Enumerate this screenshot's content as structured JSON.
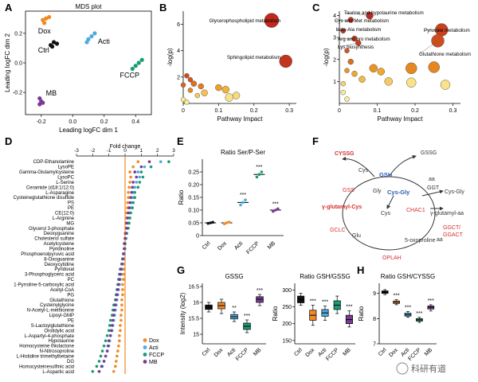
{
  "panel_letters": {
    "A": "A",
    "B": "B",
    "C": "C",
    "D": "D",
    "E": "E",
    "F": "F",
    "G": "G",
    "H": "H"
  },
  "colors": {
    "Ctrl": "#111111",
    "Dox": "#f08a24",
    "Acti": "#4faadc",
    "FCCP": "#1b9a77",
    "MB": "#7b3a96",
    "bubble_hot": "#c0281c",
    "bubble_mid": "#f0a020",
    "bubble_cold": "#fbf3a2",
    "sig": "#d32f2f",
    "gsh": "#2a5db0"
  },
  "chart_data": [
    {
      "id": "A",
      "type": "scatter",
      "title": "MDS plot",
      "xlabel": "Leading logFC dim 1",
      "ylabel": "Leading logFC dim 2",
      "xlim": [
        -0.3,
        0.5
      ],
      "ylim": [
        -0.35,
        0.35
      ],
      "xticks": [
        "-0.2",
        "0.0",
        "0.2",
        "0.4"
      ],
      "yticks": [
        "-0.2",
        "0.0",
        "0.2"
      ],
      "series": [
        {
          "name": "Dox",
          "points": [
            [
              -0.19,
              0.29
            ],
            [
              -0.17,
              0.3
            ],
            [
              -0.15,
              0.31
            ],
            [
              -0.18,
              0.27
            ]
          ]
        },
        {
          "name": "Ctrl",
          "points": [
            [
              -0.14,
              0.12
            ],
            [
              -0.12,
              0.14
            ],
            [
              -0.1,
              0.13
            ],
            [
              -0.13,
              0.11
            ]
          ]
        },
        {
          "name": "Acti",
          "points": [
            [
              0.1,
              0.16
            ],
            [
              0.12,
              0.18
            ],
            [
              0.14,
              0.2
            ],
            [
              0.09,
              0.14
            ]
          ]
        },
        {
          "name": "FCCP",
          "points": [
            [
              0.38,
              -0.04
            ],
            [
              0.4,
              -0.02
            ],
            [
              0.42,
              0.0
            ],
            [
              0.44,
              0.02
            ]
          ]
        },
        {
          "name": "MB",
          "points": [
            [
              -0.21,
              -0.24
            ],
            [
              -0.2,
              -0.26
            ],
            [
              -0.19,
              -0.27
            ],
            [
              -0.21,
              -0.28
            ]
          ]
        }
      ]
    },
    {
      "id": "B",
      "type": "scatter",
      "xlabel": "Pathway Impact",
      "ylabel": "-log(p)",
      "xlim": [
        0,
        0.32
      ],
      "ylim": [
        0,
        7
      ],
      "xticks": [
        "0",
        "0.1",
        "0.2",
        "0.3"
      ],
      "yticks": [
        "2",
        "4",
        "6"
      ],
      "points": [
        {
          "x": 0.25,
          "y": 6.3,
          "size": 9,
          "heat": 1.0,
          "label": "Glycerophospholipid metabolism"
        },
        {
          "x": 0.29,
          "y": 3.2,
          "size": 8,
          "heat": 0.95,
          "label": "Sphingolipid metabolism"
        },
        {
          "x": 0.01,
          "y": 2.1,
          "size": 3,
          "heat": 0.85,
          "label": ""
        },
        {
          "x": 0.02,
          "y": 1.8,
          "size": 3,
          "heat": 0.8,
          "label": ""
        },
        {
          "x": 0.03,
          "y": 1.5,
          "size": 3.5,
          "heat": 0.7,
          "label": ""
        },
        {
          "x": 0.0,
          "y": 1.4,
          "size": 3,
          "heat": 0.75,
          "label": ""
        },
        {
          "x": 0.05,
          "y": 1.3,
          "size": 3.5,
          "heat": 0.65,
          "label": ""
        },
        {
          "x": 0.1,
          "y": 1.2,
          "size": 4,
          "heat": 0.5,
          "label": ""
        },
        {
          "x": 0.12,
          "y": 1.05,
          "size": 4.5,
          "heat": 0.4,
          "label": ""
        },
        {
          "x": 0.02,
          "y": 1.0,
          "size": 3,
          "heat": 0.6,
          "label": ""
        },
        {
          "x": 0.06,
          "y": 0.8,
          "size": 4,
          "heat": 0.3,
          "label": ""
        },
        {
          "x": 0.04,
          "y": 0.6,
          "size": 3,
          "heat": 0.25,
          "label": ""
        },
        {
          "x": 0.15,
          "y": 0.6,
          "size": 4.5,
          "heat": 0.15,
          "label": ""
        },
        {
          "x": 0.13,
          "y": 0.45,
          "size": 5,
          "heat": 0.1,
          "label": ""
        },
        {
          "x": 0.0,
          "y": 0.3,
          "size": 3,
          "heat": 0.05,
          "label": ""
        },
        {
          "x": 0.01,
          "y": 0.1,
          "size": 3,
          "heat": 0.05,
          "label": ""
        }
      ]
    },
    {
      "id": "C",
      "type": "scatter",
      "xlabel": "Pathway Impact",
      "ylabel": "-log(p)",
      "xlim": [
        0,
        0.32
      ],
      "ylim": [
        0,
        4.2
      ],
      "xticks": [
        "0",
        "0.1",
        "0.2",
        "0.3"
      ],
      "yticks": [
        "1",
        "2",
        "3",
        "4"
      ],
      "points": [
        {
          "x": 0.08,
          "y": 4.0,
          "size": 4.5,
          "heat": 1.0,
          "label": "Taurine and hypotaurine metabolism"
        },
        {
          "x": 0.03,
          "y": 3.8,
          "size": 3.5,
          "heat": 0.95,
          "label": "Cys and Met metabolism"
        },
        {
          "x": 0.01,
          "y": 3.3,
          "size": 3,
          "heat": 0.95,
          "label": "beta-Ala metabolism"
        },
        {
          "x": 0.27,
          "y": 3.35,
          "size": 8,
          "heat": 0.9,
          "label": "Pyruvate metabolism"
        },
        {
          "x": 0.04,
          "y": 2.95,
          "size": 3.5,
          "heat": 0.9,
          "label": "Arg and pro metabolism"
        },
        {
          "x": 0.05,
          "y": 2.75,
          "size": 3.5,
          "heat": 0.9,
          "label": "Lys biosynthesis"
        },
        {
          "x": 0.26,
          "y": 2.85,
          "size": 8,
          "heat": 0.85,
          "label": "Glutathione metabolism"
        },
        {
          "x": 0.02,
          "y": 2.4,
          "size": 3,
          "heat": 0.8,
          "label": ""
        },
        {
          "x": 0.03,
          "y": 1.9,
          "size": 3.5,
          "heat": 0.7,
          "label": ""
        },
        {
          "x": 0.09,
          "y": 1.6,
          "size": 5,
          "heat": 0.55,
          "label": ""
        },
        {
          "x": 0.02,
          "y": 1.5,
          "size": 3,
          "heat": 0.55,
          "label": ""
        },
        {
          "x": 0.04,
          "y": 1.35,
          "size": 3.5,
          "heat": 0.45,
          "label": ""
        },
        {
          "x": 0.11,
          "y": 1.45,
          "size": 4.5,
          "heat": 0.45,
          "label": ""
        },
        {
          "x": 0.06,
          "y": 1.1,
          "size": 4,
          "heat": 0.35,
          "label": ""
        },
        {
          "x": 0.13,
          "y": 1.0,
          "size": 5,
          "heat": 0.25,
          "label": ""
        },
        {
          "x": 0.19,
          "y": 1.6,
          "size": 7,
          "heat": 0.6,
          "label": ""
        },
        {
          "x": 0.25,
          "y": 1.65,
          "size": 7,
          "heat": 0.6,
          "label": ""
        },
        {
          "x": 0.19,
          "y": 0.95,
          "size": 6,
          "heat": 0.1,
          "label": ""
        },
        {
          "x": 0.28,
          "y": 0.85,
          "size": 6,
          "heat": 0.1,
          "label": ""
        },
        {
          "x": 0.01,
          "y": 0.9,
          "size": 3,
          "heat": 0.2,
          "label": ""
        },
        {
          "x": 0.01,
          "y": 0.5,
          "size": 3,
          "heat": 0.05,
          "label": ""
        },
        {
          "x": 0.02,
          "y": 0.2,
          "size": 3,
          "heat": 0.05,
          "label": ""
        }
      ]
    },
    {
      "id": "D",
      "type": "scatter",
      "title": "Fold change",
      "xlim": [
        -3,
        3
      ],
      "xticks": [
        "-3",
        "-2",
        "-1",
        "0",
        "1",
        "2",
        "3"
      ],
      "groups": [
        "Dox",
        "Acti",
        "FCCP",
        "MB"
      ],
      "categories": [
        "CDP-Ethanolamine",
        "LysoPE",
        "Gamma-Glutamylcysteine",
        "LysoPC",
        "L-Serine",
        "Ceramide (d18:1/12:0)",
        "L-Asparagine",
        "Cysteineglutathione disulfide",
        "PS",
        "PE",
        "CE(12:0)",
        "L-Arginine",
        "MG",
        "Glycerol 3-phosphate",
        "Deoxyguanine",
        "Cholesterol sulfate",
        "Acetylcysteine",
        "Pyridinoline",
        "Phosphoenolpyruvic acid",
        "8-Oxoguanine",
        "Deoxycytidine",
        "Pyridoxal",
        "3-Phosphoglyceric acid",
        "PC",
        "1-Pyrroline-5-carboxylic acid",
        "Acetyl-CoA",
        "PG",
        "Glutathione",
        "Cysteinylglycine",
        "N-Acetyl-L-methionine",
        "Lipoyl-GMP",
        "PE",
        "S-Lactoylglutathione",
        "Orotidylic acid",
        "L-Aspartyl-4-phosphate",
        "Hypotaurine",
        "Homocysteine thiolactone",
        "N-Nitrosoproline",
        "L-Histidine trimethylbetaine",
        "DG",
        "Homocysteinesulfinic acid",
        "L-Aspartic acid"
      ],
      "values": {
        "Dox": [
          0.8,
          0.5,
          0.3,
          0.35,
          0.3,
          0.25,
          0.2,
          0.2,
          0.15,
          0.15,
          0.1,
          0.1,
          0.05,
          0.05,
          0.0,
          0.0,
          0.0,
          -0.05,
          -0.05,
          -0.05,
          -0.1,
          -0.1,
          -0.1,
          -0.1,
          -0.15,
          -0.15,
          -0.15,
          -0.2,
          -0.2,
          -0.2,
          -0.25,
          -0.25,
          -0.3,
          -0.3,
          -0.35,
          -0.35,
          -0.4,
          -0.45,
          -0.5,
          -0.55,
          -0.6,
          -0.7
        ],
        "Acti": [
          2.2,
          1.2,
          0.8,
          0.9,
          0.7,
          0.6,
          0.5,
          0.5,
          0.4,
          0.35,
          0.3,
          0.25,
          0.2,
          0.15,
          0.1,
          0.05,
          0.0,
          0.0,
          -0.05,
          -0.1,
          -0.15,
          -0.2,
          -0.25,
          -0.3,
          -0.35,
          -0.4,
          -0.45,
          -0.5,
          -0.55,
          -0.6,
          -0.65,
          -0.7,
          -0.75,
          -0.8,
          -0.9,
          -0.95,
          -1.0,
          -1.1,
          -1.2,
          -1.3,
          -1.4,
          -1.6
        ],
        "FCCP": [
          2.7,
          1.6,
          1.0,
          1.1,
          0.9,
          0.8,
          0.6,
          0.6,
          0.5,
          0.45,
          0.35,
          0.3,
          0.25,
          0.2,
          0.1,
          0.05,
          0.0,
          -0.05,
          -0.1,
          -0.15,
          -0.2,
          -0.3,
          -0.35,
          -0.4,
          -0.45,
          -0.5,
          -0.55,
          -0.6,
          -0.7,
          -0.75,
          -0.8,
          -0.9,
          -0.95,
          -1.0,
          -1.1,
          -1.2,
          -1.3,
          -1.4,
          -1.5,
          -1.6,
          -1.75,
          -2.0
        ],
        "MB": [
          1.5,
          1.0,
          0.6,
          0.7,
          0.5,
          0.45,
          0.4,
          0.35,
          0.3,
          0.25,
          0.2,
          0.15,
          0.1,
          0.1,
          0.05,
          0.0,
          -0.05,
          -0.05,
          -0.1,
          -0.15,
          -0.2,
          -0.25,
          -0.3,
          -0.35,
          -0.4,
          -0.45,
          -0.5,
          -0.55,
          -0.6,
          -0.65,
          -0.7,
          -0.75,
          -0.8,
          -0.85,
          -0.9,
          -1.0,
          -1.05,
          -1.1,
          -1.2,
          -1.3,
          -1.45,
          -1.6
        ]
      },
      "legend": [
        "Dox",
        "Acti",
        "FCCP",
        "MB"
      ]
    },
    {
      "id": "E",
      "type": "scatter",
      "title": "Ratio Ser/P-Ser",
      "ylabel": "Ratio",
      "ylim": [
        0,
        0.3
      ],
      "yticks": [
        "0",
        "0.05",
        "0.10",
        "0.15",
        "0.20",
        "0.25"
      ],
      "categories": [
        "Ctrl",
        "Dox",
        "Acti",
        "FCCP",
        "MB"
      ],
      "means": [
        0.05,
        0.05,
        0.13,
        0.24,
        0.1
      ],
      "points": [
        [
          0.048,
          0.05,
          0.052
        ],
        [
          0.046,
          0.05,
          0.053
        ],
        [
          0.12,
          0.13,
          0.14
        ],
        [
          0.23,
          0.24,
          0.25
        ],
        [
          0.095,
          0.1,
          0.105
        ]
      ],
      "significance": [
        "",
        "",
        "***",
        "***",
        "***"
      ]
    },
    {
      "id": "G1",
      "type": "box",
      "title": "GSSG",
      "ylabel": "Intensity (log2)",
      "ylim": [
        14.7,
        16.6
      ],
      "yticks": [
        "15",
        "15.5",
        "16",
        "16.5"
      ],
      "categories": [
        "Ctrl",
        "Dox",
        "Acti",
        "FCCP",
        "MB"
      ],
      "boxes": [
        [
          15.7,
          15.78,
          15.85,
          15.92,
          16.0
        ],
        [
          15.65,
          15.8,
          15.9,
          16.0,
          16.1
        ],
        [
          15.4,
          15.48,
          15.55,
          15.62,
          15.7
        ],
        [
          15.05,
          15.15,
          15.25,
          15.35,
          15.45
        ],
        [
          15.9,
          16.0,
          16.1,
          16.18,
          16.25
        ]
      ],
      "significance": [
        "",
        "",
        "**",
        "***",
        "***"
      ]
    },
    {
      "id": "G2",
      "type": "box",
      "title": "Ratio GSH/GSSG",
      "ylabel": "Ratio",
      "ylim": [
        140,
        320
      ],
      "yticks": [
        "150",
        "200",
        "250",
        "300"
      ],
      "categories": [
        "Ctrl",
        "Dox",
        "Acti",
        "FCCP",
        "MB"
      ],
      "boxes": [
        [
          255,
          262,
          272,
          282,
          290
        ],
        [
          195,
          210,
          225,
          240,
          255
        ],
        [
          210,
          222,
          232,
          242,
          252
        ],
        [
          230,
          242,
          255,
          268,
          282
        ],
        [
          190,
          200,
          212,
          225,
          238
        ]
      ],
      "significance": [
        "",
        "***",
        "***",
        "",
        "***"
      ]
    },
    {
      "id": "H",
      "type": "box",
      "title": "Ratio GSH/CYSSG",
      "ylabel": "Ratio",
      "ylim": [
        7,
        9.4
      ],
      "yticks": [
        "7",
        "8",
        "9"
      ],
      "categories": [
        "Ctrl",
        "Dox",
        "Acti",
        "FCCP",
        "MB"
      ],
      "boxes": [
        [
          8.95,
          9.0,
          9.05,
          9.1,
          9.15
        ],
        [
          8.55,
          8.6,
          8.65,
          8.7,
          8.75
        ],
        [
          8.05,
          8.1,
          8.15,
          8.22,
          8.28
        ],
        [
          7.85,
          7.9,
          7.95,
          8.0,
          8.05
        ],
        [
          8.3,
          8.38,
          8.45,
          8.5,
          8.55
        ]
      ],
      "significance": [
        "",
        "***",
        "***",
        "***",
        "***"
      ]
    }
  ],
  "diagram_F": {
    "nodes": {
      "cyssg": "CYSSG",
      "gssg": "GSSG",
      "cys_top": "Cys",
      "gsh": "GSH",
      "gss": "GSS",
      "gly": "Gly",
      "cys_gly": "Cys-Gly",
      "aa_top": "aa",
      "ggt": "GGT",
      "cys_gly_r": "Cys-Gly",
      "glu_cys": "γ-glutamyl-Cys",
      "cys_mid": "Cys",
      "chac1": "CHAC1",
      "gg_aa": "γ-glutamyl-aa",
      "gclc": "GCLC",
      "glu": "Glu",
      "ggct": "GGCT/",
      "ggact": "GGACT",
      "aa_low": "aa",
      "oxoproline": "5-oxoproline",
      "oplah": "OPLAH"
    }
  },
  "watermark": {
    "text": "科研有道"
  }
}
